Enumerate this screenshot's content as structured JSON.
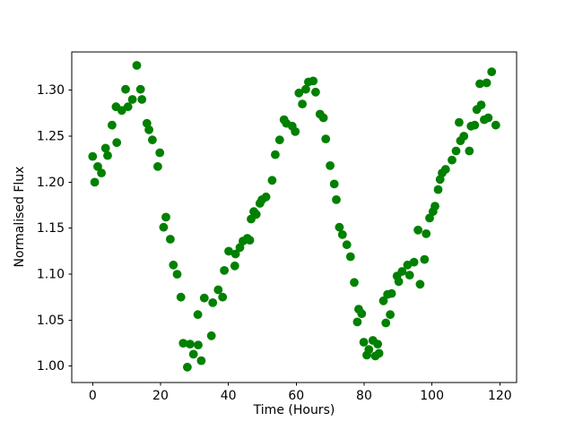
{
  "figure": {
    "background": "#ffffff"
  },
  "chart_data": {
    "type": "scatter",
    "title": "",
    "xlabel": "Time (Hours)",
    "ylabel": "Normalised Flux",
    "grid": false,
    "legend": null,
    "xlim": [
      -6.16,
      124.94
    ],
    "ylim": [
      0.9822,
      1.3416
    ],
    "x_ticks": [
      0,
      20,
      40,
      60,
      80,
      100,
      120
    ],
    "x_tick_labels": [
      "0",
      "20",
      "40",
      "60",
      "80",
      "100",
      "120"
    ],
    "y_ticks": [
      1.0,
      1.05,
      1.1,
      1.15,
      1.2,
      1.25,
      1.3
    ],
    "y_tick_labels": [
      "1.00",
      "1.05",
      "1.10",
      "1.15",
      "1.20",
      "1.25",
      "1.30"
    ],
    "marker": {
      "shape": "circle",
      "color": "#008000",
      "radius_px": 4.9
    },
    "series": [
      {
        "name": "normalised-flux",
        "x": [
          0.0,
          0.6,
          1.5,
          2.6,
          3.8,
          4.4,
          5.7,
          6.9,
          7.1,
          8.6,
          9.7,
          10.4,
          11.7,
          13.0,
          14.1,
          14.5,
          16.0,
          16.6,
          17.6,
          19.2,
          19.8,
          20.9,
          21.6,
          22.9,
          23.8,
          24.9,
          26.0,
          26.7,
          27.9,
          28.7,
          29.7,
          31.0,
          31.1,
          32.0,
          32.9,
          35.0,
          35.4,
          37.0,
          38.3,
          38.8,
          40.1,
          41.9,
          42.1,
          43.4,
          44.3,
          45.6,
          46.3,
          46.7,
          47.5,
          48.2,
          49.3,
          49.9,
          51.1,
          52.9,
          53.8,
          55.1,
          56.4,
          57.1,
          58.8,
          59.7,
          60.8,
          61.8,
          62.8,
          63.6,
          65.0,
          65.7,
          67.0,
          68.0,
          68.7,
          70.0,
          71.2,
          71.8,
          72.7,
          73.6,
          74.9,
          76.0,
          77.1,
          78.0,
          78.4,
          79.3,
          79.9,
          80.8,
          81.4,
          82.6,
          83.3,
          84.0,
          84.4,
          85.7,
          86.4,
          86.9,
          87.7,
          88.1,
          89.7,
          90.2,
          91.2,
          92.8,
          93.4,
          94.7,
          95.9,
          96.5,
          97.8,
          98.3,
          99.3,
          100.3,
          100.9,
          101.8,
          102.4,
          103.0,
          104.0,
          105.9,
          107.1,
          108.0,
          108.4,
          109.4,
          111.0,
          111.5,
          112.6,
          113.2,
          114.1,
          114.5,
          115.4,
          116.1,
          116.6,
          117.6,
          118.8
        ],
        "y": [
          1.228,
          1.2,
          1.217,
          1.21,
          1.237,
          1.229,
          1.262,
          1.282,
          1.243,
          1.278,
          1.301,
          1.282,
          1.29,
          1.327,
          1.301,
          1.29,
          1.264,
          1.257,
          1.246,
          1.217,
          1.232,
          1.151,
          1.162,
          1.138,
          1.11,
          1.1,
          1.075,
          1.025,
          0.999,
          1.024,
          1.013,
          1.056,
          1.023,
          1.006,
          1.074,
          1.033,
          1.069,
          1.083,
          1.075,
          1.104,
          1.125,
          1.109,
          1.122,
          1.129,
          1.136,
          1.139,
          1.137,
          1.16,
          1.168,
          1.165,
          1.177,
          1.181,
          1.184,
          1.202,
          1.23,
          1.246,
          1.268,
          1.264,
          1.261,
          1.255,
          1.297,
          1.285,
          1.301,
          1.309,
          1.31,
          1.298,
          1.274,
          1.27,
          1.247,
          1.218,
          1.198,
          1.181,
          1.151,
          1.143,
          1.132,
          1.119,
          1.091,
          1.048,
          1.062,
          1.057,
          1.026,
          1.012,
          1.018,
          1.028,
          1.011,
          1.024,
          1.014,
          1.071,
          1.047,
          1.078,
          1.056,
          1.079,
          1.098,
          1.092,
          1.103,
          1.11,
          1.099,
          1.113,
          1.148,
          1.089,
          1.116,
          1.144,
          1.161,
          1.168,
          1.174,
          1.192,
          1.203,
          1.21,
          1.214,
          1.224,
          1.234,
          1.265,
          1.245,
          1.25,
          1.234,
          1.261,
          1.262,
          1.279,
          1.307,
          1.284,
          1.268,
          1.308,
          1.27,
          1.32,
          1.262
        ]
      }
    ]
  }
}
